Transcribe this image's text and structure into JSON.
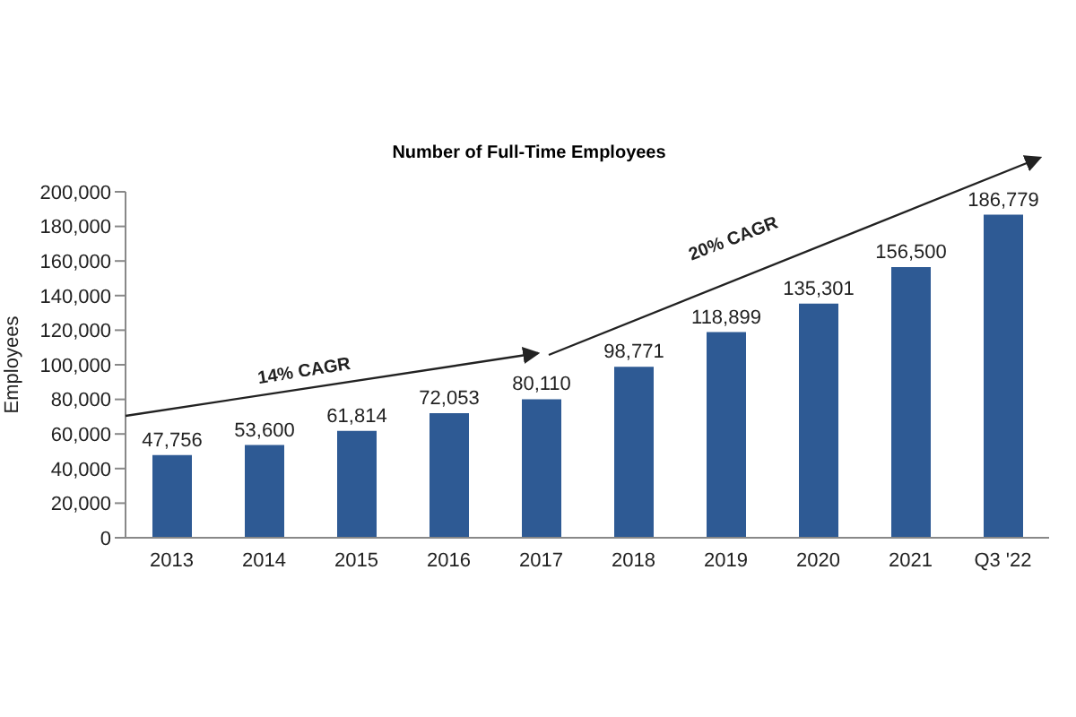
{
  "chart_data": {
    "type": "bar",
    "title": "Number of Full-Time Employees",
    "ylabel": "Employees",
    "categories": [
      "2013",
      "2014",
      "2015",
      "2016",
      "2017",
      "2018",
      "2019",
      "2020",
      "2021",
      "Q3 '22"
    ],
    "values": [
      47756,
      53600,
      61814,
      72053,
      80110,
      98771,
      118899,
      135301,
      156500,
      186779
    ],
    "color": "#2e5a94",
    "value_labels": [
      "47,756",
      "53,600",
      "61,814",
      "72,053",
      "80,110",
      "98,771",
      "118,899",
      "135,301",
      "156,500",
      "186,779"
    ],
    "ylim": [
      0,
      200000
    ],
    "yticks": [
      0,
      {
        "value": 20000,
        "label": "20,000"
      },
      {
        "value": 40000,
        "label": "40,000"
      },
      {
        "value": 60000,
        "label": "60,000"
      },
      {
        "value": 80000,
        "label": "80,000"
      },
      {
        "value": 100000,
        "label": "100,000"
      },
      {
        "value": 120000,
        "label": "120,000"
      },
      {
        "value": 140000,
        "label": "140,000"
      },
      {
        "value": 160000,
        "label": "160,000"
      },
      {
        "value": 180000,
        "label": "180,000"
      },
      {
        "value": 200000,
        "label": "200,000"
      }
    ],
    "grid": false,
    "annotations": [
      "14% CAGR",
      "20% CAGR"
    ]
  }
}
